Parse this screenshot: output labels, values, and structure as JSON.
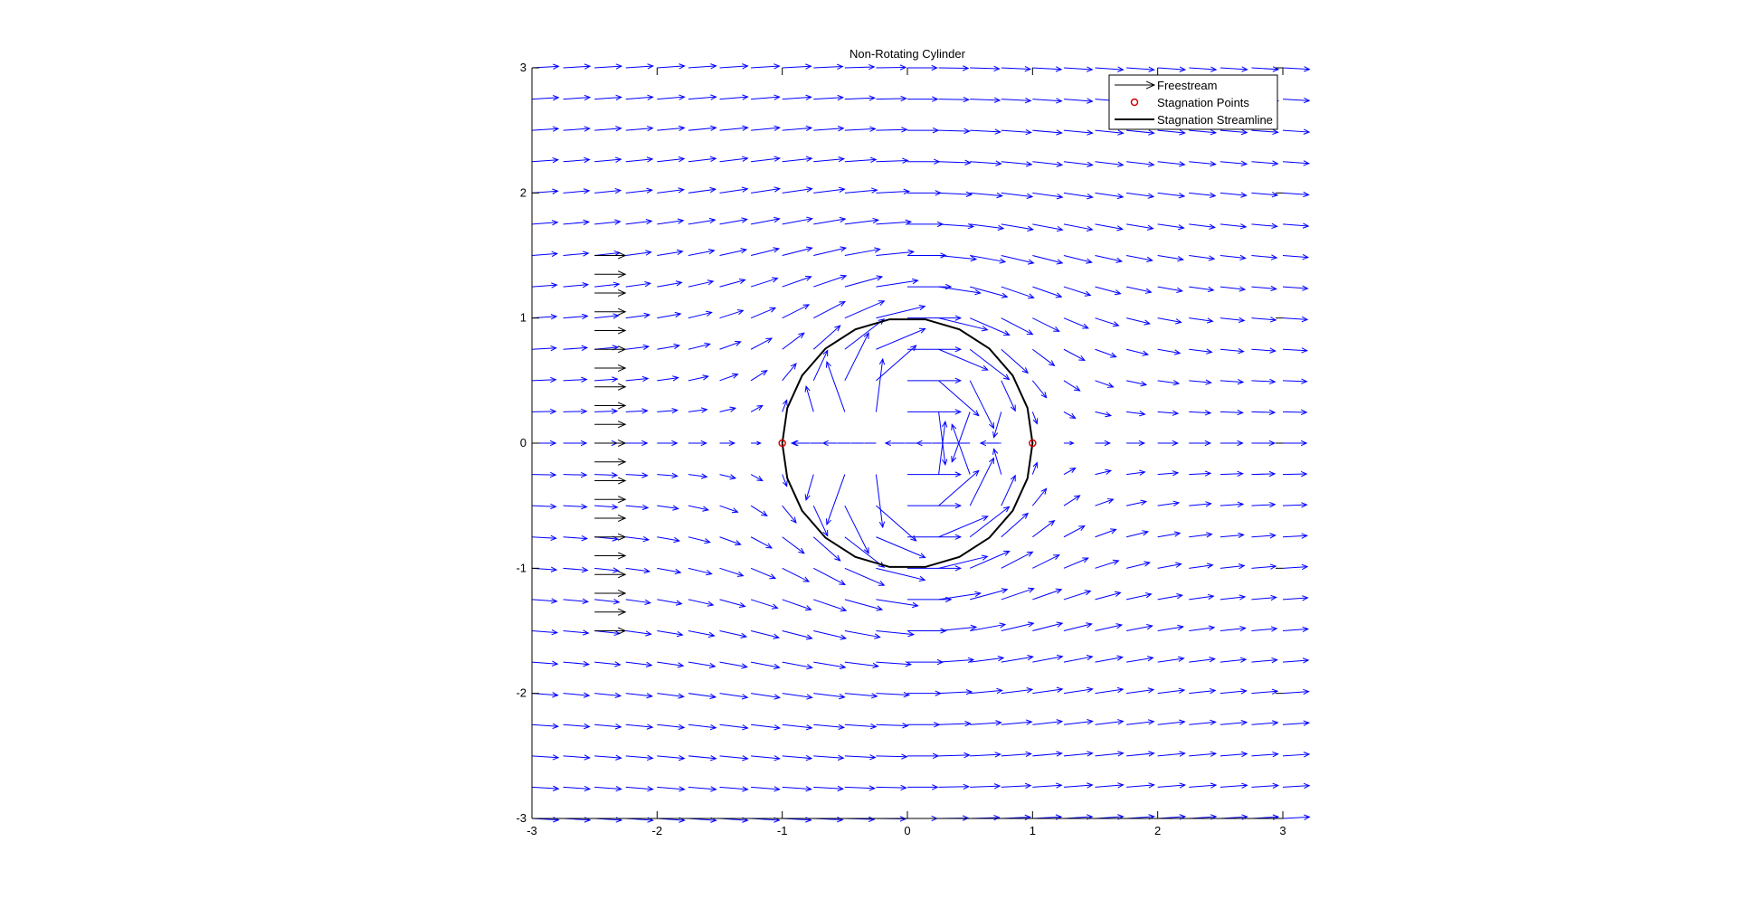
{
  "chart_data": {
    "type": "quiver",
    "title": "Non-Rotating Cylinder",
    "xlabel": "",
    "ylabel": "",
    "xlim": [
      -3,
      3
    ],
    "ylim": [
      -3,
      3
    ],
    "xticks": [
      "-3",
      "-2",
      "-1",
      "0",
      "1",
      "2",
      "3"
    ],
    "yticks": [
      "3",
      "2",
      "1",
      "0",
      "-1",
      "-2",
      "-3"
    ],
    "grid": false,
    "legend_position": "top-right",
    "legend": [
      {
        "name": "Freestream",
        "marker": "arrow",
        "color": "#000000"
      },
      {
        "name": "Stagnation Points",
        "marker": "circle",
        "color": "#d40000"
      },
      {
        "name": "Stagnation Streamline",
        "marker": "line",
        "color": "#000000"
      }
    ],
    "series": [
      {
        "name": "Freestream",
        "kind": "arrows",
        "color": "#000000",
        "x": -2.5,
        "y_range": [
          -1.5,
          1.5
        ],
        "y_step": 0.15,
        "u": 1,
        "v": 0
      },
      {
        "name": "Stagnation Points",
        "kind": "points",
        "color": "#d40000",
        "points": [
          [
            -1,
            0
          ],
          [
            1,
            0
          ]
        ]
      },
      {
        "name": "Stagnation Streamline",
        "kind": "circle",
        "color": "#000000",
        "center": [
          0,
          0
        ],
        "radius": 1,
        "n_segments": 22
      },
      {
        "name": "velocity field",
        "kind": "quiver",
        "color": "#0000ff",
        "grid_range": [
          -3,
          3
        ],
        "grid_step": 0.25,
        "freestream_velocity": 1,
        "cylinder_radius": 1
      }
    ]
  }
}
